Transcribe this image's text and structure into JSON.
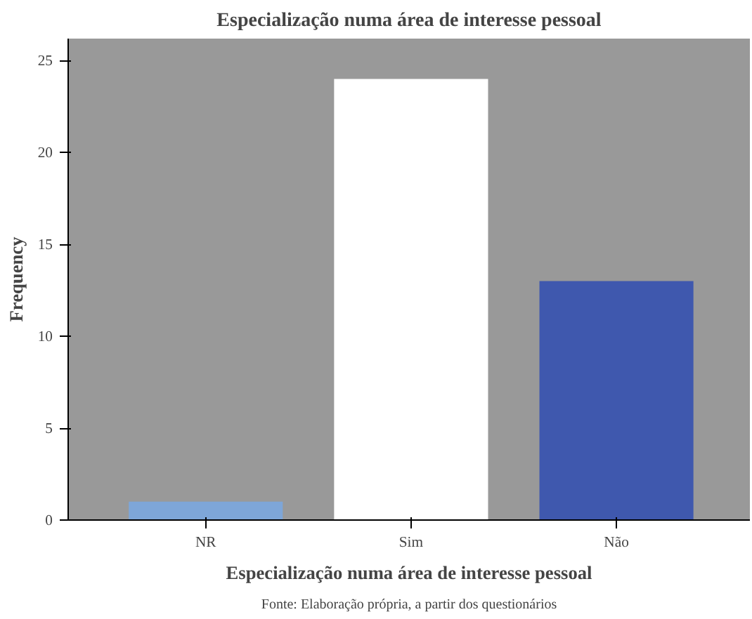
{
  "chart_data": {
    "type": "bar",
    "title": "Especialização numa área de interesse pessoal",
    "xlabel": "Especialização numa área de interesse pessoal",
    "ylabel": "Frequency",
    "categories": [
      "NR",
      "Sim",
      "Não"
    ],
    "values": [
      1,
      24,
      13
    ],
    "colors": [
      "#7ea6d8",
      "#ffffff",
      "#3f58ae"
    ],
    "ylim": [
      0,
      26.2
    ],
    "yticks": [
      0,
      5,
      10,
      15,
      20,
      25
    ],
    "grid": false,
    "annotations": [
      "Fonte: Elaboração própria, a partir dos questionários"
    ]
  }
}
